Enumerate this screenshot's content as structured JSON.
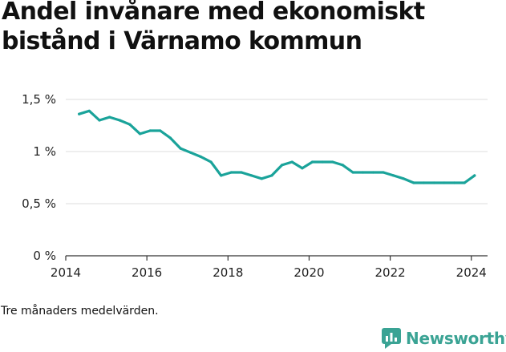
{
  "chart_data": {
    "type": "line",
    "title": "Andel invånare med ekonomiskt bistånd i Värnamo kommun",
    "xlabel": "",
    "ylabel": "",
    "xlim": [
      2014,
      2024.4
    ],
    "ylim": [
      0,
      1.5
    ],
    "x_ticks": [
      {
        "value": 2014,
        "label": "2014"
      },
      {
        "value": 2016,
        "label": "2016"
      },
      {
        "value": 2018,
        "label": "2018"
      },
      {
        "value": 2020,
        "label": "2020"
      },
      {
        "value": 2022,
        "label": "2022"
      },
      {
        "value": 2024,
        "label": "2024"
      }
    ],
    "y_ticks": [
      {
        "value": 0,
        "label": "0 %"
      },
      {
        "value": 0.5,
        "label": "0,5 %"
      },
      {
        "value": 1,
        "label": "1 %"
      },
      {
        "value": 1.5,
        "label": "1,5 %"
      }
    ],
    "grid": true,
    "series": [
      {
        "color": "#1aa39a",
        "points": [
          [
            2014.33,
            1.36
          ],
          [
            2014.58,
            1.39
          ],
          [
            2014.83,
            1.3
          ],
          [
            2015.08,
            1.33
          ],
          [
            2015.33,
            1.3
          ],
          [
            2015.58,
            1.26
          ],
          [
            2015.83,
            1.17
          ],
          [
            2016.08,
            1.2
          ],
          [
            2016.33,
            1.2
          ],
          [
            2016.58,
            1.13
          ],
          [
            2016.83,
            1.03
          ],
          [
            2017.08,
            0.99
          ],
          [
            2017.33,
            0.95
          ],
          [
            2017.58,
            0.9
          ],
          [
            2017.83,
            0.77
          ],
          [
            2018.08,
            0.8
          ],
          [
            2018.33,
            0.8
          ],
          [
            2018.58,
            0.77
          ],
          [
            2018.83,
            0.74
          ],
          [
            2019.08,
            0.77
          ],
          [
            2019.33,
            0.87
          ],
          [
            2019.58,
            0.9
          ],
          [
            2019.83,
            0.84
          ],
          [
            2020.08,
            0.9
          ],
          [
            2020.33,
            0.9
          ],
          [
            2020.58,
            0.9
          ],
          [
            2020.83,
            0.87
          ],
          [
            2021.08,
            0.8
          ],
          [
            2021.33,
            0.8
          ],
          [
            2021.58,
            0.8
          ],
          [
            2021.83,
            0.8
          ],
          [
            2022.08,
            0.77
          ],
          [
            2022.33,
            0.74
          ],
          [
            2022.58,
            0.7
          ],
          [
            2022.83,
            0.7
          ],
          [
            2023.08,
            0.7
          ],
          [
            2023.33,
            0.7
          ],
          [
            2023.58,
            0.7
          ],
          [
            2023.83,
            0.7
          ],
          [
            2024.08,
            0.77
          ]
        ]
      }
    ]
  },
  "footer": {
    "note": "Tre månaders medelvärden.",
    "brand": "Newsworthy",
    "brand_icon": "newsworthy-logo-icon",
    "brand_color": "#3aa394"
  }
}
